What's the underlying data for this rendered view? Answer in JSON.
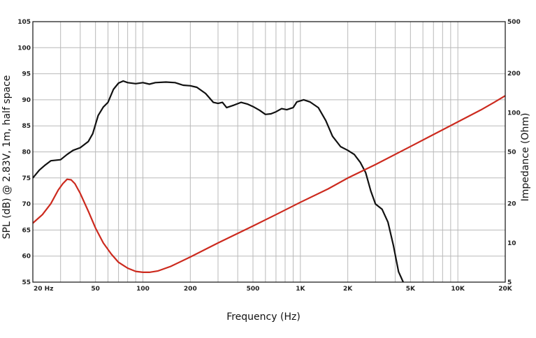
{
  "chart_data": {
    "type": "line",
    "title": "",
    "xlabel": "Frequency (Hz)",
    "ylabel_left": "SPL (dB) @ 2.83V, 1m, half space",
    "ylabel_right": "Impedance (Ohm)",
    "x_scale": "log",
    "xlim": [
      20,
      20000
    ],
    "ylim_left": [
      55,
      105
    ],
    "ylim_right": [
      5,
      500
    ],
    "y_right_scale": "log",
    "grid": true,
    "x_ticks": [
      {
        "value": 20,
        "label": "20 Hz"
      },
      {
        "value": 50,
        "label": "50"
      },
      {
        "value": 100,
        "label": "100"
      },
      {
        "value": 200,
        "label": "200"
      },
      {
        "value": 500,
        "label": "500"
      },
      {
        "value": 1000,
        "label": "1K"
      },
      {
        "value": 2000,
        "label": "2K"
      },
      {
        "value": 5000,
        "label": "5K"
      },
      {
        "value": 10000,
        "label": "10K"
      },
      {
        "value": 20000,
        "label": "20K"
      }
    ],
    "y_left_ticks": [
      55,
      60,
      65,
      70,
      75,
      80,
      85,
      90,
      95,
      100,
      105
    ],
    "y_right_ticks": [
      5,
      10,
      20,
      50,
      100,
      200,
      500
    ],
    "series": [
      {
        "axis": "left",
        "color": "#111111",
        "points": [
          [
            20,
            75
          ],
          [
            22,
            76.5
          ],
          [
            24,
            77.5
          ],
          [
            26,
            78.3
          ],
          [
            30,
            78.5
          ],
          [
            33,
            79.5
          ],
          [
            36,
            80.3
          ],
          [
            40,
            80.8
          ],
          [
            45,
            82
          ],
          [
            48,
            83.5
          ],
          [
            52,
            87
          ],
          [
            56,
            88.6
          ],
          [
            60,
            89.5
          ],
          [
            65,
            92
          ],
          [
            70,
            93.2
          ],
          [
            75,
            93.6
          ],
          [
            80,
            93.3
          ],
          [
            90,
            93.1
          ],
          [
            100,
            93.3
          ],
          [
            110,
            93
          ],
          [
            120,
            93.3
          ],
          [
            140,
            93.4
          ],
          [
            160,
            93.3
          ],
          [
            180,
            92.8
          ],
          [
            200,
            92.7
          ],
          [
            220,
            92.4
          ],
          [
            250,
            91.2
          ],
          [
            280,
            89.5
          ],
          [
            300,
            89.3
          ],
          [
            320,
            89.5
          ],
          [
            340,
            88.5
          ],
          [
            380,
            89
          ],
          [
            420,
            89.5
          ],
          [
            460,
            89.2
          ],
          [
            500,
            88.7
          ],
          [
            550,
            88
          ],
          [
            600,
            87.2
          ],
          [
            650,
            87.3
          ],
          [
            700,
            87.7
          ],
          [
            760,
            88.3
          ],
          [
            820,
            88.1
          ],
          [
            900,
            88.5
          ],
          [
            950,
            89.6
          ],
          [
            1050,
            90
          ],
          [
            1150,
            89.6
          ],
          [
            1300,
            88.5
          ],
          [
            1450,
            86
          ],
          [
            1600,
            83
          ],
          [
            1800,
            81
          ],
          [
            2000,
            80.3
          ],
          [
            2200,
            79.5
          ],
          [
            2400,
            78
          ],
          [
            2600,
            76
          ],
          [
            2800,
            72.5
          ],
          [
            3000,
            70
          ],
          [
            3300,
            69
          ],
          [
            3600,
            66.5
          ],
          [
            3900,
            62
          ],
          [
            4200,
            57
          ],
          [
            4500,
            55
          ]
        ]
      },
      {
        "axis": "right",
        "color": "#cc2a1e",
        "points": [
          [
            20,
            14.2
          ],
          [
            23,
            16.5
          ],
          [
            26,
            20
          ],
          [
            29,
            25.5
          ],
          [
            31,
            28.5
          ],
          [
            33,
            30.8
          ],
          [
            35,
            30.5
          ],
          [
            37,
            28.5
          ],
          [
            40,
            24
          ],
          [
            45,
            17.5
          ],
          [
            50,
            13
          ],
          [
            56,
            10
          ],
          [
            63,
            8.2
          ],
          [
            70,
            7.1
          ],
          [
            80,
            6.4
          ],
          [
            90,
            6.05
          ],
          [
            100,
            5.95
          ],
          [
            110,
            5.95
          ],
          [
            125,
            6.1
          ],
          [
            150,
            6.6
          ],
          [
            200,
            7.8
          ],
          [
            300,
            10
          ],
          [
            500,
            13.5
          ],
          [
            700,
            16.5
          ],
          [
            1000,
            20.5
          ],
          [
            1500,
            26
          ],
          [
            2000,
            31.5
          ],
          [
            3000,
            40
          ],
          [
            5000,
            55
          ],
          [
            7000,
            68
          ],
          [
            10000,
            85
          ],
          [
            14000,
            105
          ],
          [
            17000,
            120
          ],
          [
            20000,
            135
          ]
        ]
      }
    ]
  }
}
